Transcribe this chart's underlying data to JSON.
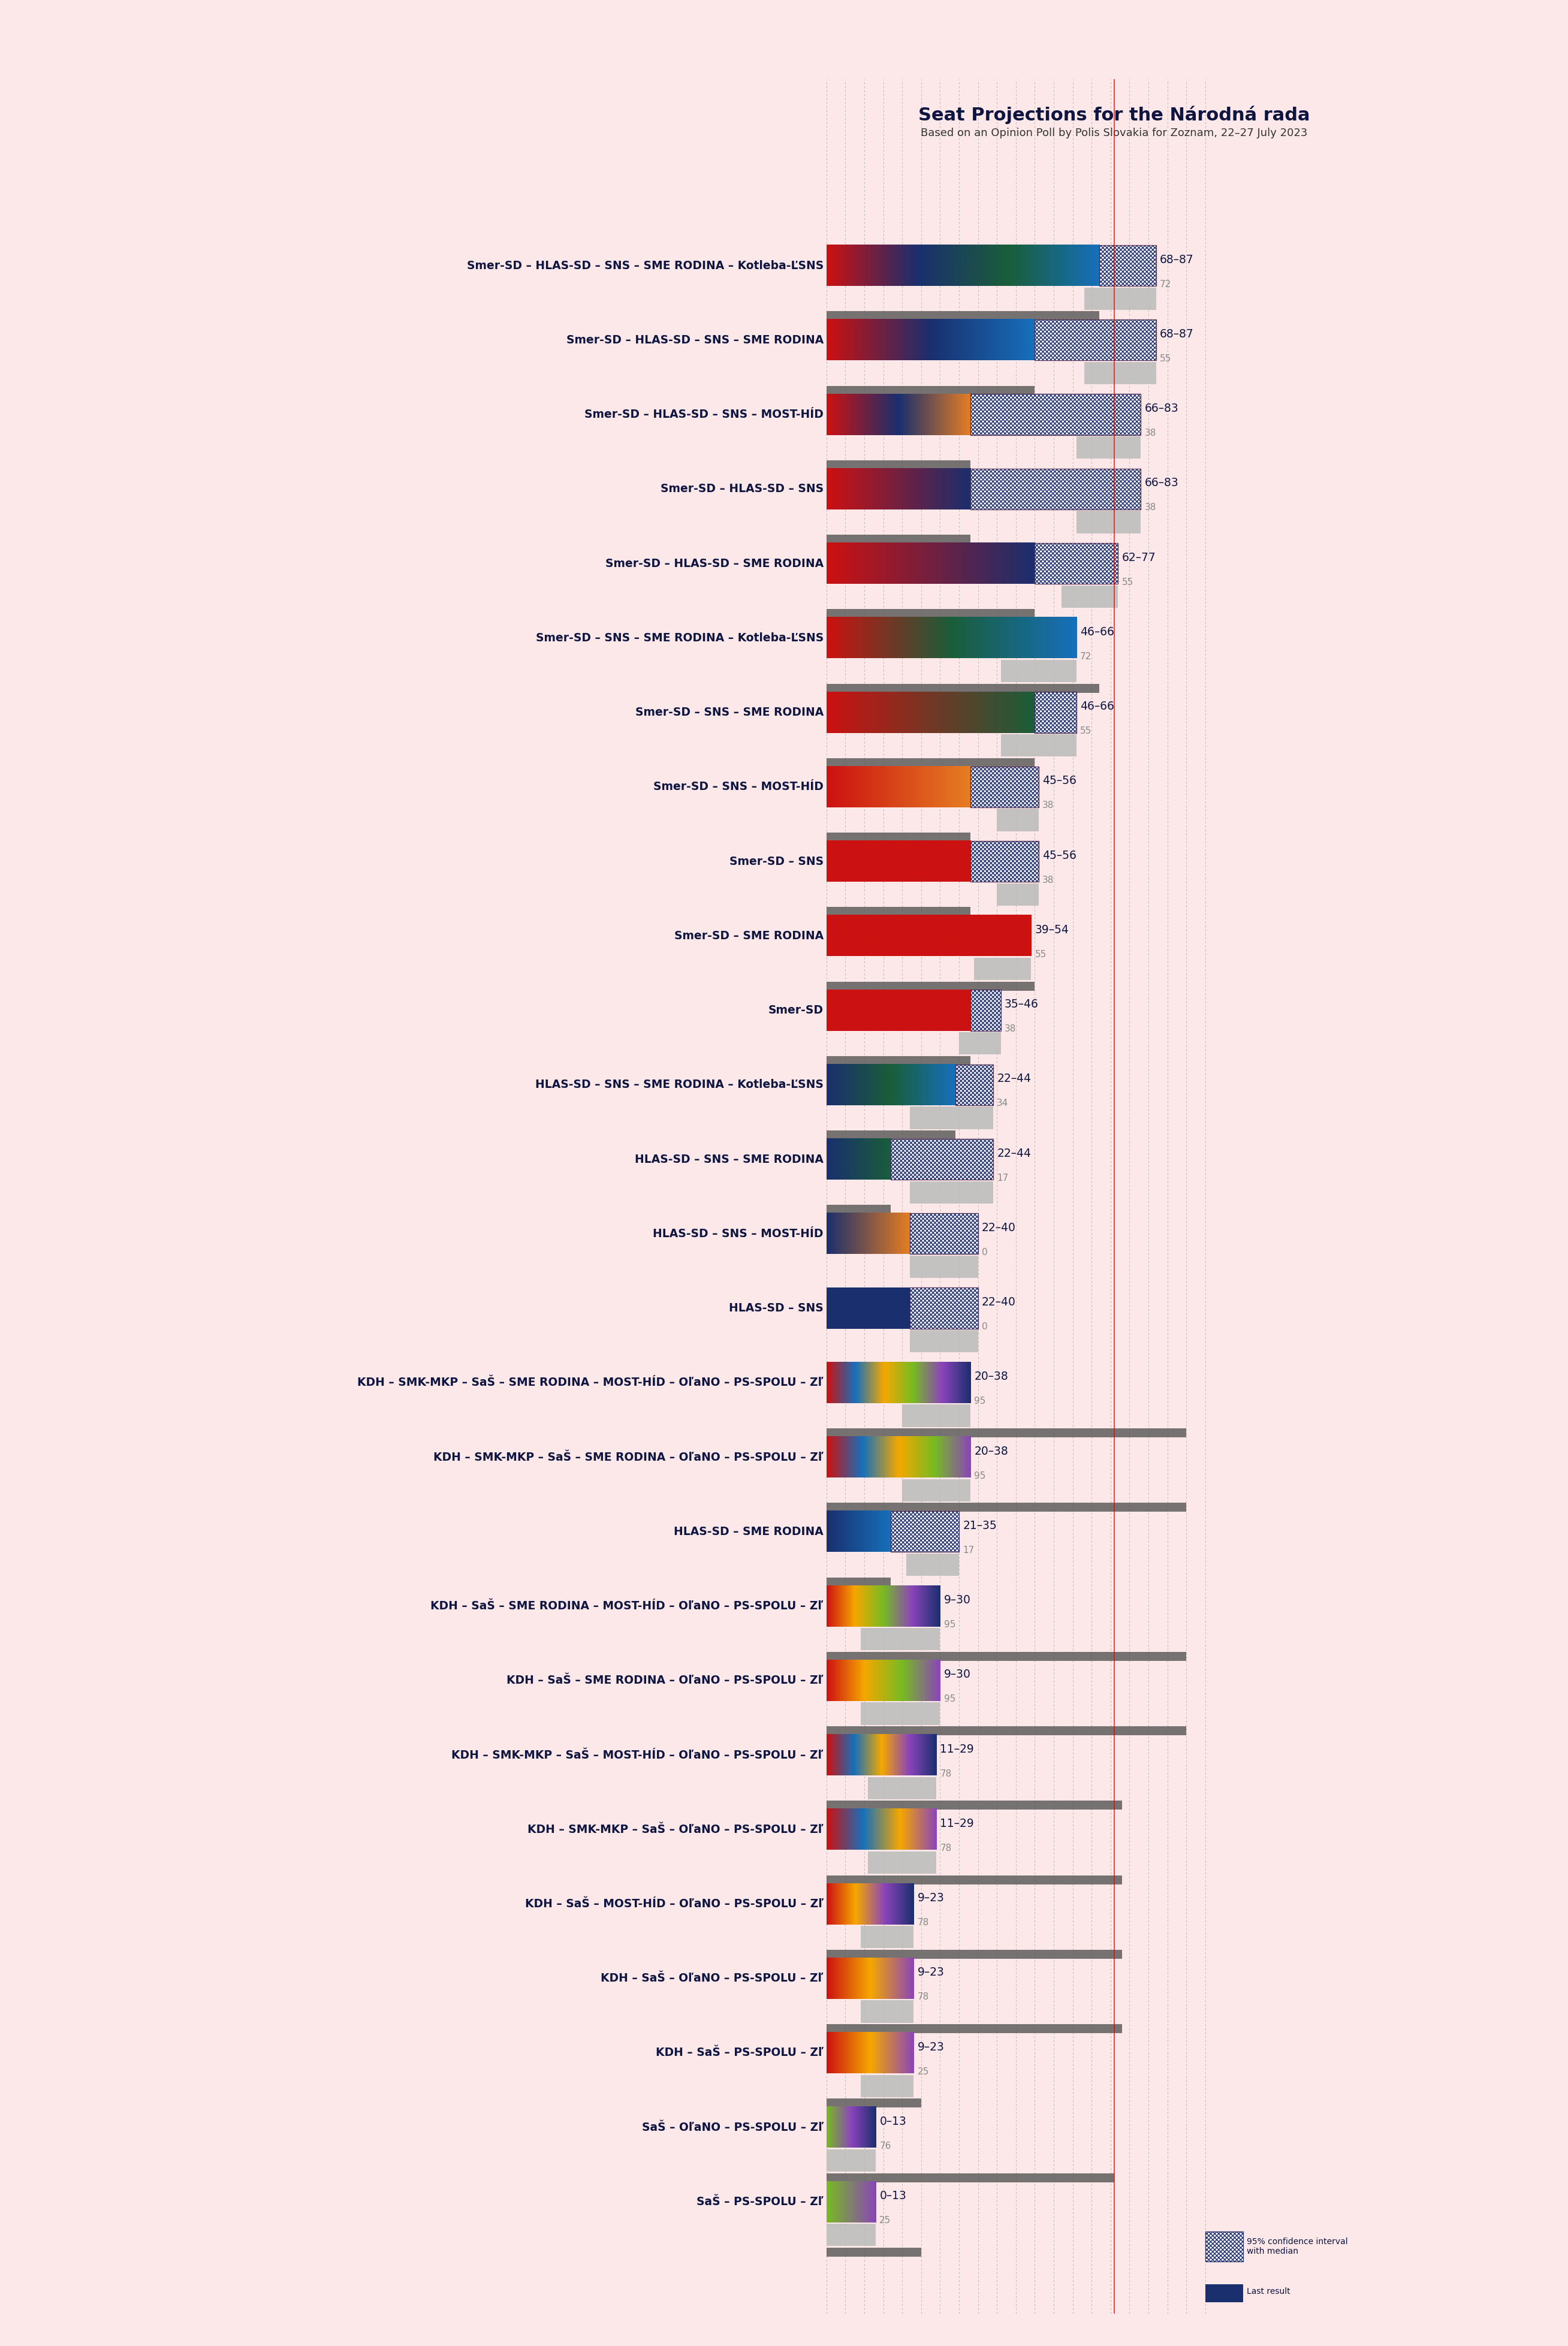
{
  "title": "Seat Projections for the Národná rada",
  "subtitle": "Based on an Opinion Poll by Polis Slovakia for Zoznam, 22–27 July 2023",
  "background_color": "#fce8e8",
  "coalitions": [
    {
      "label": "Smer-SD – HLAS-SD – SNS – SME RODINA – Kotleba-ĽSNS",
      "ci_low": 68,
      "ci_high": 87,
      "median": 72,
      "last": 72,
      "bar_colors": [
        "#cc1111",
        "#1a2f6e",
        "#1a5e3a",
        "#1670bb"
      ],
      "type": "left"
    },
    {
      "label": "Smer-SD – HLAS-SD – SNS – SME RODINA",
      "ci_low": 68,
      "ci_high": 87,
      "median": 55,
      "last": 55,
      "bar_colors": [
        "#cc1111",
        "#1a2f6e",
        "#1670bb"
      ],
      "type": "left"
    },
    {
      "label": "Smer-SD – HLAS-SD – SNS – MOST-HÍD",
      "ci_low": 66,
      "ci_high": 83,
      "median": 38,
      "last": 38,
      "bar_colors": [
        "#cc1111",
        "#1a2f6e",
        "#e67e22"
      ],
      "type": "left"
    },
    {
      "label": "Smer-SD – HLAS-SD – SNS",
      "ci_low": 66,
      "ci_high": 83,
      "median": 38,
      "last": 38,
      "bar_colors": [
        "#cc1111",
        "#1a2f6e"
      ],
      "type": "left"
    },
    {
      "label": "Smer-SD – HLAS-SD – SME RODINA",
      "ci_low": 62,
      "ci_high": 77,
      "median": 55,
      "last": 55,
      "bar_colors": [
        "#cc1111",
        "#1a2f6e"
      ],
      "type": "left"
    },
    {
      "label": "Smer-SD – SNS – SME RODINA – Kotleba-ĽSNS",
      "ci_low": 46,
      "ci_high": 66,
      "median": 72,
      "last": 72,
      "bar_colors": [
        "#cc1111",
        "#1a5e3a",
        "#1670bb"
      ],
      "type": "left"
    },
    {
      "label": "Smer-SD – SNS – SME RODINA",
      "ci_low": 46,
      "ci_high": 66,
      "median": 55,
      "last": 55,
      "bar_colors": [
        "#cc1111",
        "#1a5e3a"
      ],
      "type": "left"
    },
    {
      "label": "Smer-SD – SNS – MOST-HÍD",
      "ci_low": 45,
      "ci_high": 56,
      "median": 38,
      "last": 38,
      "bar_colors": [
        "#cc1111",
        "#e67e22"
      ],
      "type": "left"
    },
    {
      "label": "Smer-SD – SNS",
      "ci_low": 45,
      "ci_high": 56,
      "median": 38,
      "last": 38,
      "bar_colors": [
        "#cc1111"
      ],
      "type": "left"
    },
    {
      "label": "Smer-SD – SME RODINA",
      "ci_low": 39,
      "ci_high": 54,
      "median": 55,
      "last": 55,
      "bar_colors": [
        "#cc1111"
      ],
      "type": "left"
    },
    {
      "label": "Smer-SD",
      "ci_low": 35,
      "ci_high": 46,
      "median": 38,
      "last": 38,
      "bar_colors": [
        "#cc1111"
      ],
      "type": "left"
    },
    {
      "label": "HLAS-SD – SNS – SME RODINA – Kotleba-ĽSNS",
      "ci_low": 22,
      "ci_high": 44,
      "median": 34,
      "last": 34,
      "bar_colors": [
        "#1a2f6e",
        "#1a5e3a",
        "#1670bb"
      ],
      "type": "left"
    },
    {
      "label": "HLAS-SD – SNS – SME RODINA",
      "ci_low": 22,
      "ci_high": 44,
      "median": 17,
      "last": 17,
      "bar_colors": [
        "#1a2f6e",
        "#1a5e3a"
      ],
      "type": "left"
    },
    {
      "label": "HLAS-SD – SNS – MOST-HÍD",
      "ci_low": 22,
      "ci_high": 40,
      "median": 0,
      "last": 0,
      "bar_colors": [
        "#1a2f6e",
        "#e67e22"
      ],
      "type": "left"
    },
    {
      "label": "HLAS-SD – SNS",
      "ci_low": 22,
      "ci_high": 40,
      "median": 0,
      "last": 0,
      "bar_colors": [
        "#1a2f6e"
      ],
      "type": "left"
    },
    {
      "label": "KDH – SMK-MKP – SaŠ – SME RODINA – MOST-HÍD – OľaNO – PS-SPOLU – Zľ",
      "ci_low": 20,
      "ci_high": 38,
      "median": 95,
      "last": 95,
      "bar_colors": [
        "#cc1111",
        "#1670bb",
        "#f5a800",
        "#77bb22",
        "#8b44bb",
        "#1a2f6e"
      ],
      "type": "right"
    },
    {
      "label": "KDH – SMK-MKP – SaŠ – SME RODINA – OľaNO – PS-SPOLU – Zľ",
      "ci_low": 20,
      "ci_high": 38,
      "median": 95,
      "last": 95,
      "bar_colors": [
        "#cc1111",
        "#1670bb",
        "#f5a800",
        "#77bb22",
        "#8b44bb"
      ],
      "type": "right"
    },
    {
      "label": "HLAS-SD – SME RODINA",
      "ci_low": 21,
      "ci_high": 35,
      "median": 17,
      "last": 17,
      "bar_colors": [
        "#1a2f6e",
        "#1670bb"
      ],
      "type": "left"
    },
    {
      "label": "KDH – SaŠ – SME RODINA – MOST-HÍD – OľaNO – PS-SPOLU – Zľ",
      "ci_low": 9,
      "ci_high": 30,
      "median": 95,
      "last": 95,
      "bar_colors": [
        "#cc1111",
        "#f5a800",
        "#77bb22",
        "#8b44bb",
        "#1a2f6e"
      ],
      "type": "right"
    },
    {
      "label": "KDH – SaŠ – SME RODINA – OľaNO – PS-SPOLU – Zľ",
      "ci_low": 9,
      "ci_high": 30,
      "median": 95,
      "last": 95,
      "bar_colors": [
        "#cc1111",
        "#f5a800",
        "#77bb22",
        "#8b44bb"
      ],
      "type": "right"
    },
    {
      "label": "KDH – SMK-MKP – SaŠ – MOST-HÍD – OľaNO – PS-SPOLU – Zľ",
      "ci_low": 11,
      "ci_high": 29,
      "median": 78,
      "last": 78,
      "bar_colors": [
        "#cc1111",
        "#1670bb",
        "#f5a800",
        "#8b44bb",
        "#1a2f6e"
      ],
      "type": "right"
    },
    {
      "label": "KDH – SMK-MKP – SaŠ – OľaNO – PS-SPOLU – Zľ",
      "ci_low": 11,
      "ci_high": 29,
      "median": 78,
      "last": 78,
      "bar_colors": [
        "#cc1111",
        "#1670bb",
        "#f5a800",
        "#8b44bb"
      ],
      "type": "right"
    },
    {
      "label": "KDH – SaŠ – MOST-HÍD – OľaNO – PS-SPOLU – Zľ",
      "ci_low": 9,
      "ci_high": 23,
      "median": 78,
      "last": 78,
      "bar_colors": [
        "#cc1111",
        "#f5a800",
        "#8b44bb",
        "#1a2f6e"
      ],
      "type": "right"
    },
    {
      "label": "KDH – SaŠ – OľaNO – PS-SPOLU – Zľ",
      "ci_low": 9,
      "ci_high": 23,
      "median": 78,
      "last": 78,
      "bar_colors": [
        "#cc1111",
        "#f5a800",
        "#8b44bb"
      ],
      "type": "right"
    },
    {
      "label": "KDH – SaŠ – PS-SPOLU – Zľ",
      "ci_low": 9,
      "ci_high": 23,
      "median": 25,
      "last": 25,
      "bar_colors": [
        "#cc1111",
        "#f5a800",
        "#8b44bb"
      ],
      "type": "right"
    },
    {
      "label": "SaŠ – OľaNO – PS-SPOLU – Zľ",
      "ci_low": 0,
      "ci_high": 13,
      "median": 76,
      "last": 76,
      "bar_colors": [
        "#77bb22",
        "#8b44bb",
        "#1a2f6e"
      ],
      "type": "right"
    },
    {
      "label": "SaŠ – PS-SPOLU – Zľ",
      "ci_low": 0,
      "ci_high": 13,
      "median": 25,
      "last": 25,
      "bar_colors": [
        "#77bb22",
        "#8b44bb"
      ],
      "type": "right"
    }
  ],
  "majority_line": 76,
  "xmax": 150,
  "scale": 1.5,
  "text_color": "#0d1540",
  "label_fontsize": 13.5,
  "range_fontsize": 13.5,
  "last_fontsize": 11,
  "title_fontsize": 22,
  "subtitle_fontsize": 13
}
